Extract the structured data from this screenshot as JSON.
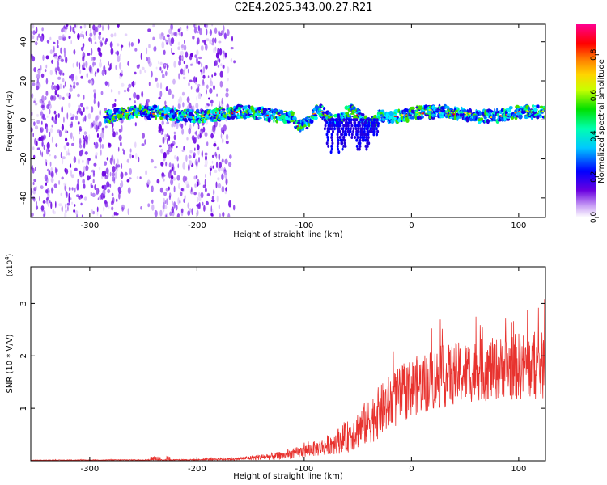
{
  "title": "C2E4.2025.343.00.27.R21",
  "chart_data": [
    {
      "type": "heatmap",
      "name": "spectrogram",
      "title": "C2E4.2025.343.00.27.R21",
      "xlabel": "Height of straight line (km)",
      "ylabel": "Frequency (Hz)",
      "xlim": [
        -355,
        125
      ],
      "ylim": [
        -50,
        49
      ],
      "xticks": [
        -300,
        -200,
        -100,
        0,
        100
      ],
      "yticks": [
        -40,
        -20,
        0,
        20,
        40
      ],
      "colorbar": {
        "label": "Normalized spectral amplitude",
        "range": [
          0.0,
          0.95
        ],
        "ticks": [
          0.0,
          0.2,
          0.4,
          0.6,
          0.8
        ]
      },
      "ridge": {
        "x_start": -285,
        "x_end": 125,
        "center_hz": 3,
        "note": "strong narrow band near 0-5 Hz from about -285 km to 125 km; broadband noise for x < -170 km"
      }
    },
    {
      "type": "line",
      "name": "snr",
      "xlabel": "Height of straight line (km)",
      "ylabel": "SNR (10 * V/V)",
      "multiplier": "(x10",
      "multiplier_exp": "4",
      "xlim": [
        -355,
        125
      ],
      "ylim": [
        0,
        3.7
      ],
      "xticks": [
        -300,
        -200,
        -100,
        0,
        100
      ],
      "yticks": [
        1,
        2,
        3
      ],
      "color": "#e8322e",
      "envelope": {
        "x": [
          -355,
          -200,
          -160,
          -120,
          -100,
          -80,
          -60,
          -40,
          -20,
          0,
          20,
          40,
          60,
          80,
          100,
          125
        ],
        "mean": [
          0.01,
          0.02,
          0.04,
          0.1,
          0.18,
          0.28,
          0.45,
          0.75,
          1.1,
          1.4,
          1.55,
          1.65,
          1.72,
          1.75,
          1.8,
          1.8
        ],
        "spread": [
          0.005,
          0.01,
          0.03,
          0.08,
          0.12,
          0.18,
          0.3,
          0.45,
          0.55,
          0.55,
          0.6,
          0.6,
          0.6,
          0.6,
          0.65,
          0.65
        ]
      }
    }
  ]
}
